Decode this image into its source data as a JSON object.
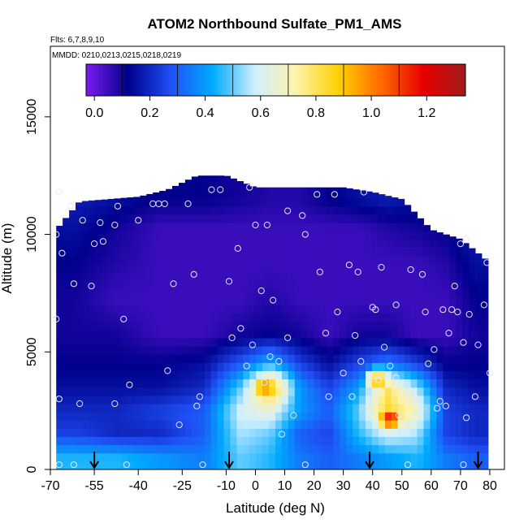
{
  "chart_data": {
    "type": "heatmap",
    "title": "ATOM2 Northbound Sulfate_PM1_AMS",
    "flights_label": "Flts: 6,7,8,9,10",
    "dates_label": "MMDD: 0210,0213,0215,0218,0219",
    "xlabel": "Latitude (deg N)",
    "ylabel": "Altitude (m)",
    "xlim": [
      -70,
      85
    ],
    "ylim": [
      0,
      18000
    ],
    "x_ticks": [
      -70,
      -55,
      -40,
      -25,
      -10,
      0,
      10,
      20,
      30,
      40,
      50,
      60,
      70,
      80
    ],
    "y_ticks": [
      0,
      5000,
      10000,
      15000
    ],
    "colorbar": {
      "ticks": [
        0.0,
        0.2,
        0.4,
        0.6,
        0.8,
        1.0,
        1.2
      ],
      "range": [
        -0.03,
        1.34
      ],
      "stops": [
        "#7a1cf0",
        "#00008c",
        "#1f4ff5",
        "#00aaff",
        "#cfefff",
        "#fff3a8",
        "#ffd000",
        "#ff6a00",
        "#e80000",
        "#a01c1c"
      ]
    },
    "grid_lat_edges": [
      -68,
      -55,
      -40,
      -25,
      -10,
      0,
      10,
      20,
      30,
      40,
      50,
      60,
      70,
      80
    ],
    "grid_alt_edges": [
      0,
      1000,
      2000,
      3000,
      4000,
      5000,
      6500,
      8000,
      9500,
      11000,
      12000
    ],
    "grid_values": [
      [
        0.45,
        0.45,
        0.4,
        0.35,
        0.5,
        0.45,
        0.35,
        0.3,
        0.35,
        0.4,
        0.45,
        0.35,
        0.3
      ],
      [
        0.25,
        0.2,
        0.2,
        0.3,
        0.55,
        0.5,
        0.3,
        0.25,
        0.45,
        0.6,
        0.55,
        0.25,
        0.2
      ],
      [
        0.2,
        0.2,
        0.25,
        0.3,
        0.6,
        0.65,
        0.4,
        0.3,
        0.5,
        0.85,
        0.7,
        0.25,
        0.2
      ],
      [
        0.15,
        0.15,
        0.15,
        0.2,
        0.5,
        0.95,
        0.4,
        0.25,
        0.4,
        0.8,
        0.55,
        0.2,
        0.15
      ],
      [
        0.12,
        0.12,
        0.12,
        0.15,
        0.3,
        0.45,
        0.25,
        0.15,
        0.25,
        0.35,
        0.25,
        0.12,
        0.12
      ],
      [
        0.1,
        0.1,
        0.05,
        0.05,
        0.1,
        0.12,
        0.1,
        0.05,
        0.1,
        0.1,
        0.05,
        0.05,
        0.1
      ],
      [
        0.1,
        0.05,
        0.05,
        0.05,
        0.05,
        0.08,
        0.05,
        0.05,
        0.05,
        0.05,
        0.05,
        0.05,
        0.12
      ],
      [
        0.12,
        0.08,
        0.05,
        0.05,
        0.05,
        0.05,
        0.05,
        0.05,
        0.05,
        0.05,
        0.05,
        0.08,
        0.15
      ],
      [
        0.15,
        0.1,
        0.05,
        0.05,
        0.05,
        0.05,
        0.05,
        0.05,
        0.05,
        0.08,
        0.1,
        0.12,
        0.18
      ],
      [
        0.18,
        0.15,
        0.12,
        0.12,
        0.1,
        0.08,
        0.08,
        0.12,
        0.15,
        0.18,
        0.15,
        0.15,
        0.2
      ]
    ],
    "peaks": [
      {
        "lat": 3,
        "alt": 3500,
        "value": 1.0
      },
      {
        "lat": 46,
        "alt": 2200,
        "value": 1.15
      },
      {
        "lat": 42,
        "alt": 3800,
        "value": 0.9
      }
    ],
    "sample_points": [
      [
        -68,
        10000
      ],
      [
        -67,
        11800
      ],
      [
        -63,
        11200
      ],
      [
        -66,
        9200
      ],
      [
        -62,
        7900
      ],
      [
        -68,
        6400
      ],
      [
        -67,
        3000
      ],
      [
        -60,
        2800
      ],
      [
        -67,
        200
      ],
      [
        -62,
        200
      ],
      [
        -59,
        10600
      ],
      [
        -53,
        10500
      ],
      [
        -55,
        9600
      ],
      [
        -52,
        9700
      ],
      [
        -56,
        7800
      ],
      [
        -48,
        10400
      ],
      [
        -47,
        11200
      ],
      [
        -45,
        6400
      ],
      [
        -43,
        3600
      ],
      [
        -48,
        2800
      ],
      [
        -44,
        200
      ],
      [
        -40,
        10600
      ],
      [
        -35,
        11300
      ],
      [
        -33,
        11300
      ],
      [
        -31,
        11300
      ],
      [
        -30,
        4200
      ],
      [
        -28,
        7900
      ],
      [
        -26,
        1900
      ],
      [
        -23,
        11300
      ],
      [
        -21,
        8300
      ],
      [
        -20,
        2700
      ],
      [
        -19,
        3100
      ],
      [
        -18,
        200
      ],
      [
        -15,
        11900
      ],
      [
        -12,
        11900
      ],
      [
        -9,
        8000
      ],
      [
        -8,
        5600
      ],
      [
        -6,
        9400
      ],
      [
        -5,
        6000
      ],
      [
        -3,
        4400
      ],
      [
        -1,
        5300
      ],
      [
        -2,
        12000
      ],
      [
        0,
        10400
      ],
      [
        2,
        7600
      ],
      [
        3,
        3700
      ],
      [
        4,
        10400
      ],
      [
        5,
        4800
      ],
      [
        5,
        2900
      ],
      [
        6,
        7200
      ],
      [
        8,
        4600
      ],
      [
        9,
        1500
      ],
      [
        11,
        11000
      ],
      [
        11,
        5600
      ],
      [
        13,
        2300
      ],
      [
        16,
        10800
      ],
      [
        17,
        10000
      ],
      [
        17,
        200
      ],
      [
        21,
        11700
      ],
      [
        22,
        8400
      ],
      [
        24,
        5800
      ],
      [
        25,
        3100
      ],
      [
        27,
        11700
      ],
      [
        28,
        6700
      ],
      [
        30,
        4100
      ],
      [
        32,
        8700
      ],
      [
        33,
        3100
      ],
      [
        34,
        5700
      ],
      [
        35,
        8400
      ],
      [
        36,
        4600
      ],
      [
        37,
        11800
      ],
      [
        40,
        6900
      ],
      [
        41,
        6800
      ],
      [
        42,
        3800
      ],
      [
        42,
        3300
      ],
      [
        43,
        8600
      ],
      [
        44,
        5200
      ],
      [
        46,
        4400
      ],
      [
        48,
        7000
      ],
      [
        48,
        3900
      ],
      [
        49,
        2300
      ],
      [
        50,
        3300
      ],
      [
        51,
        1600
      ],
      [
        52,
        200
      ],
      [
        53,
        8500
      ],
      [
        55,
        2900
      ],
      [
        57,
        8300
      ],
      [
        58,
        6700
      ],
      [
        59,
        4500
      ],
      [
        61,
        5100
      ],
      [
        62,
        2600
      ],
      [
        63,
        2900
      ],
      [
        64,
        6800
      ],
      [
        65,
        2700
      ],
      [
        66,
        5800
      ],
      [
        67,
        6800
      ],
      [
        68,
        7800
      ],
      [
        69,
        6700
      ],
      [
        70,
        9600
      ],
      [
        71,
        5400
      ],
      [
        71,
        200
      ],
      [
        72,
        2200
      ],
      [
        72,
        9800
      ],
      [
        73,
        6600
      ],
      [
        75,
        3100
      ],
      [
        76,
        5300
      ],
      [
        78,
        7000
      ],
      [
        79,
        8800
      ],
      [
        80,
        4100
      ]
    ],
    "flight_markers_lat": [
      -55,
      -9,
      39,
      76
    ]
  }
}
